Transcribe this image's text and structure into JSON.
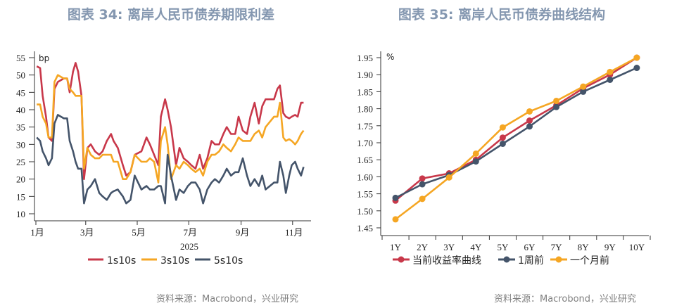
{
  "left": {
    "title": "图表 34: 离岸人民币债券期限利差",
    "source": "资料来源：Macrobond，兴业研究",
    "chart_data": {
      "type": "line",
      "ylabel": "bp",
      "xlabel": "2025",
      "ylim": [
        10,
        55
      ],
      "yticks": [
        55,
        50,
        45,
        40,
        35,
        30,
        25,
        20,
        15,
        10
      ],
      "xticks": [
        {
          "date": "01-01",
          "label": "1月"
        },
        {
          "date": "03-01",
          "label": "3月"
        },
        {
          "date": "05-01",
          "label": "5月"
        },
        {
          "date": "07-01",
          "label": "7月"
        },
        {
          "date": "09-01",
          "label": "9月"
        },
        {
          "date": "11-01",
          "label": "11月"
        }
      ],
      "grid": false,
      "legend": "bottom",
      "dates": [
        "01-02",
        "01-06",
        "01-09",
        "01-13",
        "01-16",
        "01-20",
        "01-23",
        "01-27",
        "02-03",
        "02-07",
        "02-10",
        "02-14",
        "02-17",
        "02-20",
        "02-24",
        "02-27",
        "03-03",
        "03-07",
        "03-12",
        "03-17",
        "03-21",
        "03-26",
        "03-31",
        "04-03",
        "04-08",
        "04-14",
        "04-18",
        "04-23",
        "04-28",
        "05-06",
        "05-12",
        "05-16",
        "05-21",
        "05-26",
        "05-29",
        "06-03",
        "06-06",
        "06-10",
        "06-16",
        "06-20",
        "06-25",
        "06-30",
        "07-04",
        "07-09",
        "07-14",
        "07-18",
        "07-23",
        "07-28",
        "08-01",
        "08-06",
        "08-11",
        "08-15",
        "08-20",
        "08-25",
        "08-29",
        "09-03",
        "09-08",
        "09-12",
        "09-17",
        "09-22",
        "09-26",
        "09-30",
        "10-10",
        "10-14",
        "10-17",
        "10-21",
        "10-24",
        "10-28",
        "10-31",
        "11-04",
        "11-07",
        "11-11",
        "11-14"
      ],
      "series": [
        {
          "name": "1s10s",
          "color": "#c8384a",
          "values": [
            52.5,
            52,
            44,
            38,
            32,
            31,
            46,
            48,
            49,
            49,
            45,
            51,
            53.5,
            51,
            44,
            20,
            29,
            30,
            28,
            27,
            28,
            31,
            33,
            31,
            29,
            24,
            21,
            22,
            27,
            28,
            32,
            30,
            27,
            24,
            38,
            43,
            40,
            35,
            24,
            29,
            26,
            25,
            24,
            23,
            27,
            23,
            26,
            31,
            30,
            30,
            33,
            35,
            33,
            33,
            38,
            34,
            33,
            38,
            42,
            36,
            41,
            43,
            43,
            46,
            47,
            39,
            38,
            37.5,
            38,
            38.5,
            38,
            42,
            42
          ]
        },
        {
          "name": "3s10s",
          "color": "#f5a623",
          "values": [
            41.5,
            41.5,
            38,
            36,
            32,
            32,
            48,
            50,
            49,
            49,
            46,
            45,
            44,
            44,
            44,
            23,
            29,
            27,
            26,
            26,
            27,
            27,
            27,
            25,
            25,
            20,
            20,
            22,
            27,
            25,
            25,
            26,
            25,
            19,
            31,
            35,
            30,
            20,
            24,
            23,
            25,
            24,
            23,
            22,
            23,
            21,
            25,
            27,
            27,
            28,
            30,
            29,
            28,
            30,
            32,
            31,
            31,
            31,
            33,
            34,
            32,
            35,
            38,
            38,
            42,
            32,
            31,
            31.5,
            31,
            30,
            31,
            33,
            34
          ]
        },
        {
          "name": "5s10s",
          "color": "#44546a",
          "values": [
            32,
            31,
            28,
            26,
            24,
            26,
            36,
            38.5,
            37.5,
            37.5,
            31,
            28,
            25,
            23,
            23,
            13,
            17,
            18,
            20,
            16,
            15,
            14,
            16,
            16.5,
            17,
            15,
            13,
            14,
            21,
            17,
            18,
            17,
            17,
            18,
            18,
            13,
            27,
            21,
            14,
            17,
            16,
            18,
            19,
            19,
            17,
            13,
            17,
            19,
            20,
            19,
            21,
            23,
            21,
            22,
            22,
            26,
            21,
            18,
            20,
            18,
            21,
            17,
            19,
            19,
            25,
            21,
            16,
            21,
            24,
            25,
            23,
            21,
            23.5
          ]
        }
      ]
    }
  },
  "right": {
    "title": "图表 35: 离岸人民币债券曲线结构",
    "source": "资料来源：Macrobond，兴业研究",
    "chart_data": {
      "type": "line",
      "ylabel": "%",
      "ylim": [
        1.45,
        1.95
      ],
      "yticks": [
        "1.95",
        "1.90",
        "1.85",
        "1.80",
        "1.75",
        "1.70",
        "1.65",
        "1.60",
        "1.55",
        "1.50",
        "1.45"
      ],
      "categories": [
        "1Y",
        "2Y",
        "3Y",
        "4Y",
        "5Y",
        "6Y",
        "7Y",
        "8Y",
        "9Y",
        "10Y"
      ],
      "grid": false,
      "legend": "bottom",
      "series": [
        {
          "name": "当前收益率曲线",
          "color": "#c8384a",
          "values": [
            1.53,
            1.595,
            1.61,
            1.65,
            1.715,
            1.765,
            1.81,
            1.86,
            1.9,
            1.95
          ]
        },
        {
          "name": "1周前",
          "color": "#44546a",
          "values": [
            1.538,
            1.578,
            1.605,
            1.645,
            1.697,
            1.748,
            1.805,
            1.85,
            1.885,
            1.92
          ]
        },
        {
          "name": "一个月前",
          "color": "#f5a623",
          "values": [
            1.475,
            1.535,
            1.598,
            1.668,
            1.745,
            1.792,
            1.823,
            1.865,
            1.908,
            1.95
          ]
        }
      ]
    }
  }
}
